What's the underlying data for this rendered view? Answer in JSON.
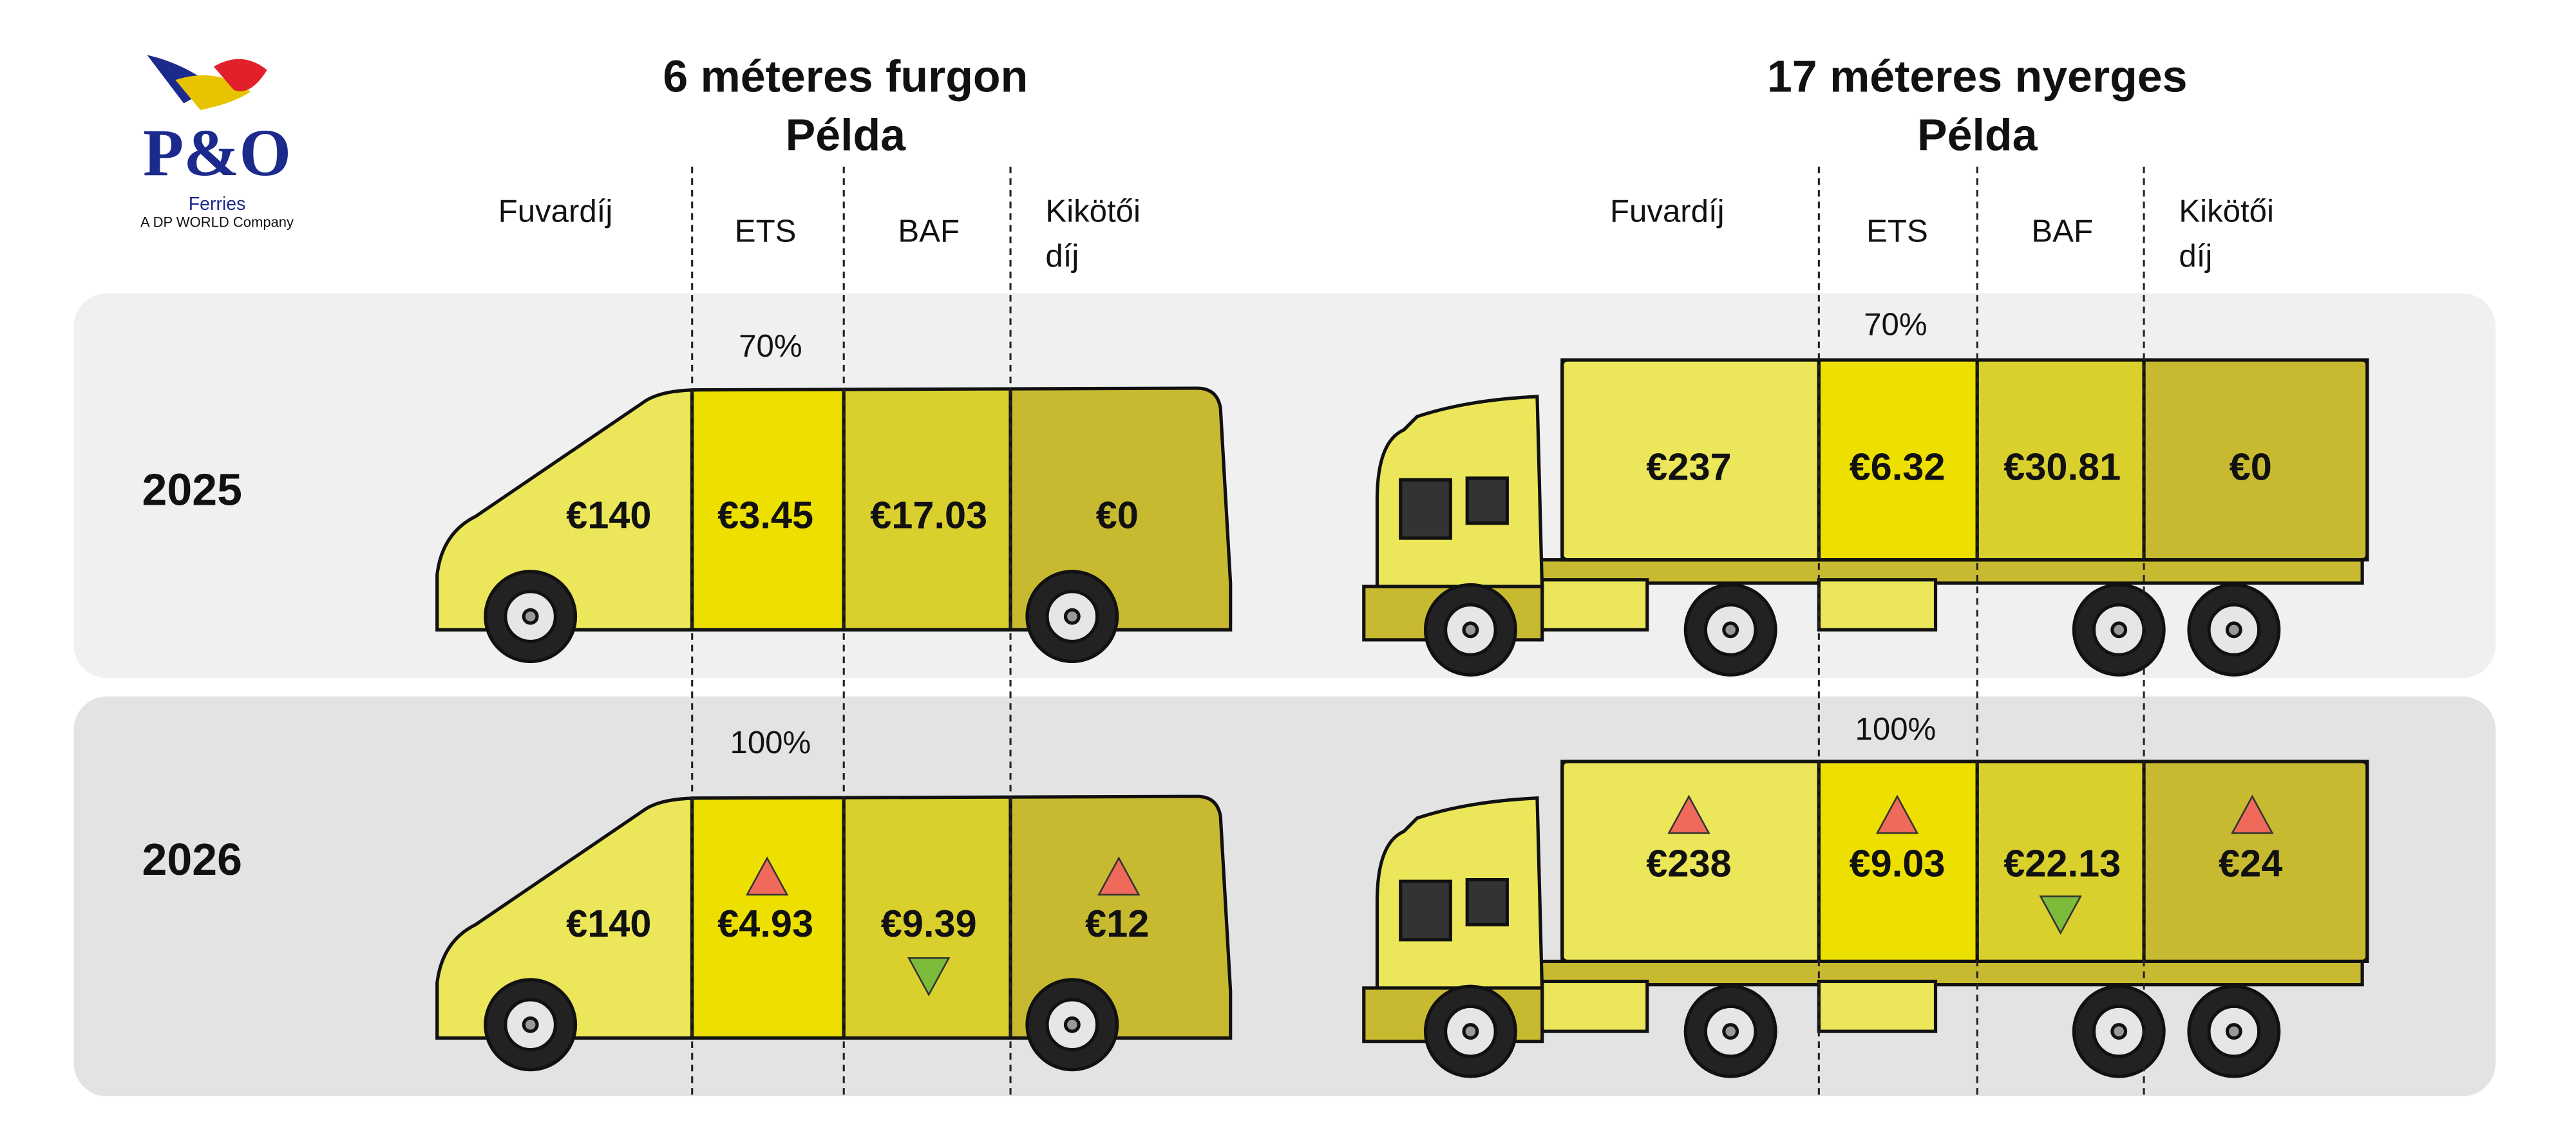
{
  "logo": {
    "brand": "P&O",
    "name": "Ferries",
    "tagline": "A DP WORLD Company"
  },
  "years": [
    "2025",
    "2026"
  ],
  "sections": [
    {
      "title": "6 méteres furgon",
      "subtitle": "Példa",
      "columns": [
        [
          "Fuvardíj"
        ],
        [
          "ETS"
        ],
        [
          "BAF"
        ],
        [
          "Kikötői",
          "díj"
        ]
      ],
      "rows": [
        {
          "ets_share": "70%",
          "values": [
            "€140",
            "€3.45",
            "€17.03",
            "€0"
          ]
        },
        {
          "ets_share": "100%",
          "values": [
            "€140",
            "€4.93",
            "€9.39",
            "€12"
          ]
        }
      ]
    },
    {
      "title": "17 méteres nyerges",
      "subtitle": "Példa",
      "columns": [
        [
          "Fuvardíj"
        ],
        [
          "ETS"
        ],
        [
          "BAF"
        ],
        [
          "Kikötői",
          "díj"
        ]
      ],
      "rows": [
        {
          "ets_share": "70%",
          "values": [
            "€237",
            "€6.32",
            "€30.81",
            "€0"
          ]
        },
        {
          "ets_share": "100%",
          "values": [
            "€238",
            "€9.03",
            "€22.13",
            "€24"
          ]
        }
      ]
    }
  ]
}
